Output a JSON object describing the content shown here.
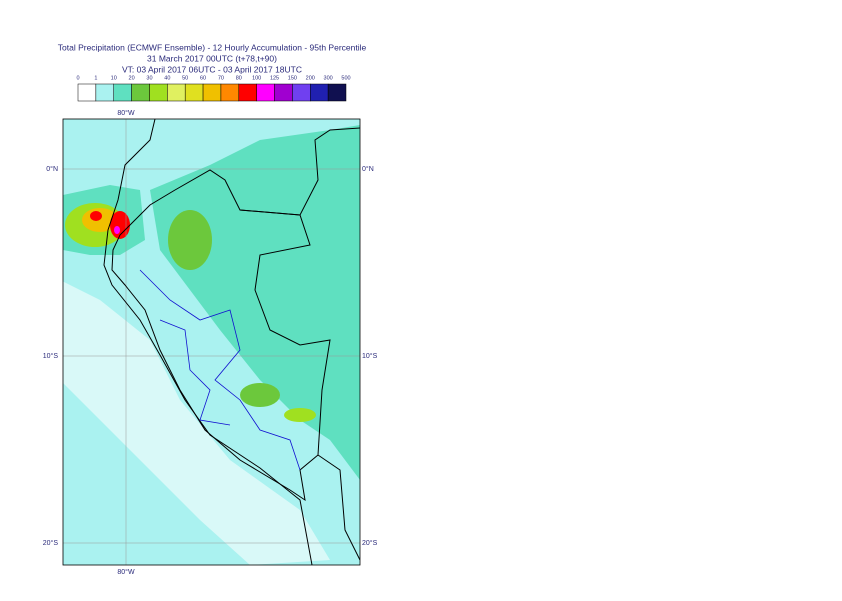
{
  "title": [
    "Total Precipitation (ECMWF Ensemble) - 12 Hourly Accumulation - 95th Percentile",
    "31 March 2017 00UTC (t+78,t+90)",
    "VT: 03 April 2017 06UTC - 03 April 2017 18UTC"
  ],
  "legend": {
    "labels": [
      0,
      1,
      10,
      20,
      30,
      40,
      50,
      60,
      70,
      80,
      100,
      125,
      150,
      200,
      300,
      500
    ],
    "colors": [
      "#ffffff",
      "#aaf2f0",
      "#5fe0c0",
      "#6cc83c",
      "#a0e020",
      "#e0f060",
      "#e0e020",
      "#f0c000",
      "#ff8800",
      "#ff0000",
      "#ff00ff",
      "#a000d0",
      "#7040f0",
      "#2020b0",
      "#101050"
    ]
  },
  "map": {
    "lon_label": "80°W",
    "lat_labels": [
      "0°N",
      "10°S",
      "20°S"
    ]
  }
}
